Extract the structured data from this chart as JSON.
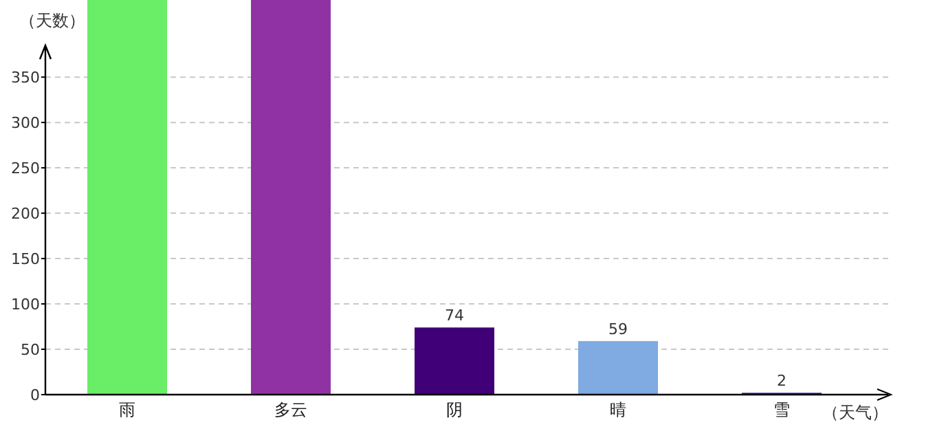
{
  "chart_data": {
    "type": "bar",
    "xlabel": "（天气）",
    "ylabel": "（天数）",
    "categories": [
      "雨",
      "多云",
      "阴",
      "晴",
      "雪"
    ],
    "values": [
      435,
      435,
      74,
      59,
      2
    ],
    "colors": [
      "#6aed67",
      "#9032a3",
      "#400078",
      "#7faae2",
      "#2a1a9a"
    ],
    "value_labels": [
      null,
      null,
      "74",
      "59",
      "2"
    ],
    "ylim": [
      0,
      435
    ],
    "yticks": [
      0,
      50,
      100,
      150,
      200,
      250,
      300,
      350
    ],
    "grid": "y"
  }
}
